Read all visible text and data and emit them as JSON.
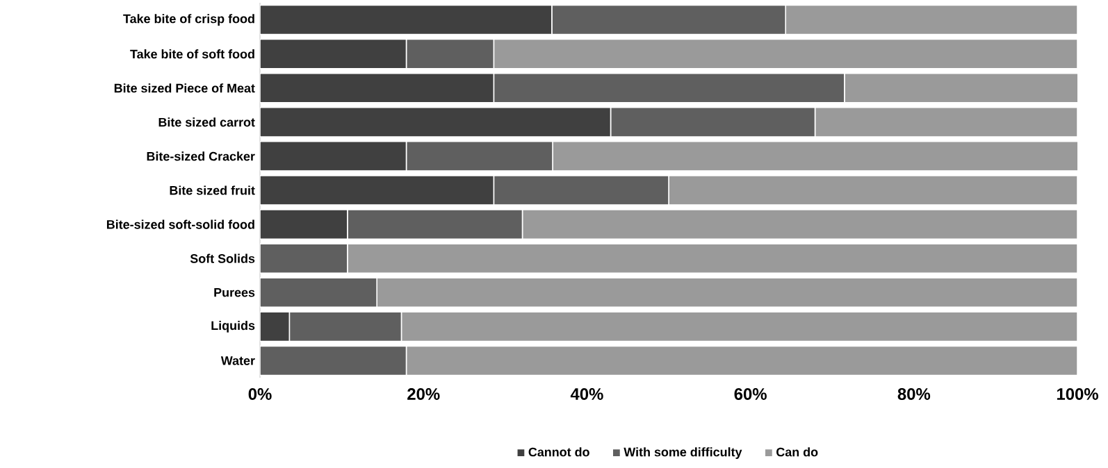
{
  "chart_data": {
    "type": "bar",
    "orientation": "horizontal",
    "stacked": true,
    "categories": [
      "Take bite of crisp food",
      "Take bite of soft food",
      "Bite sized Piece of Meat",
      "Bite sized carrot",
      "Bite-sized Cracker",
      "Bite sized fruit",
      "Bite-sized soft-solid food",
      "Soft Solids",
      "Purees",
      "Liquids",
      "Water"
    ],
    "series": [
      {
        "name": "Cannot do",
        "color": "#404040",
        "values": [
          35.7,
          17.9,
          28.6,
          42.9,
          17.9,
          28.6,
          10.7,
          0,
          0,
          3.6,
          0
        ]
      },
      {
        "name": "With some difficulty",
        "color": "#5f5f5f",
        "values": [
          28.6,
          10.7,
          42.9,
          25.0,
          17.9,
          21.4,
          21.4,
          10.7,
          14.3,
          13.7,
          17.9
        ]
      },
      {
        "name": "Can do",
        "color": "#9a9a9a",
        "values": [
          35.7,
          71.4,
          28.6,
          32.1,
          64.3,
          50.0,
          67.9,
          89.3,
          85.7,
          82.7,
          82.1
        ]
      }
    ],
    "xlim": [
      0,
      100
    ],
    "xticks": [
      {
        "value": 0,
        "label": "0%"
      },
      {
        "value": 20,
        "label": "20%"
      },
      {
        "value": 40,
        "label": "40%"
      },
      {
        "value": 60,
        "label": "60%"
      },
      {
        "value": 80,
        "label": "80%"
      },
      {
        "value": 100,
        "label": "100%"
      }
    ],
    "grid": false,
    "legend": "bottom"
  }
}
